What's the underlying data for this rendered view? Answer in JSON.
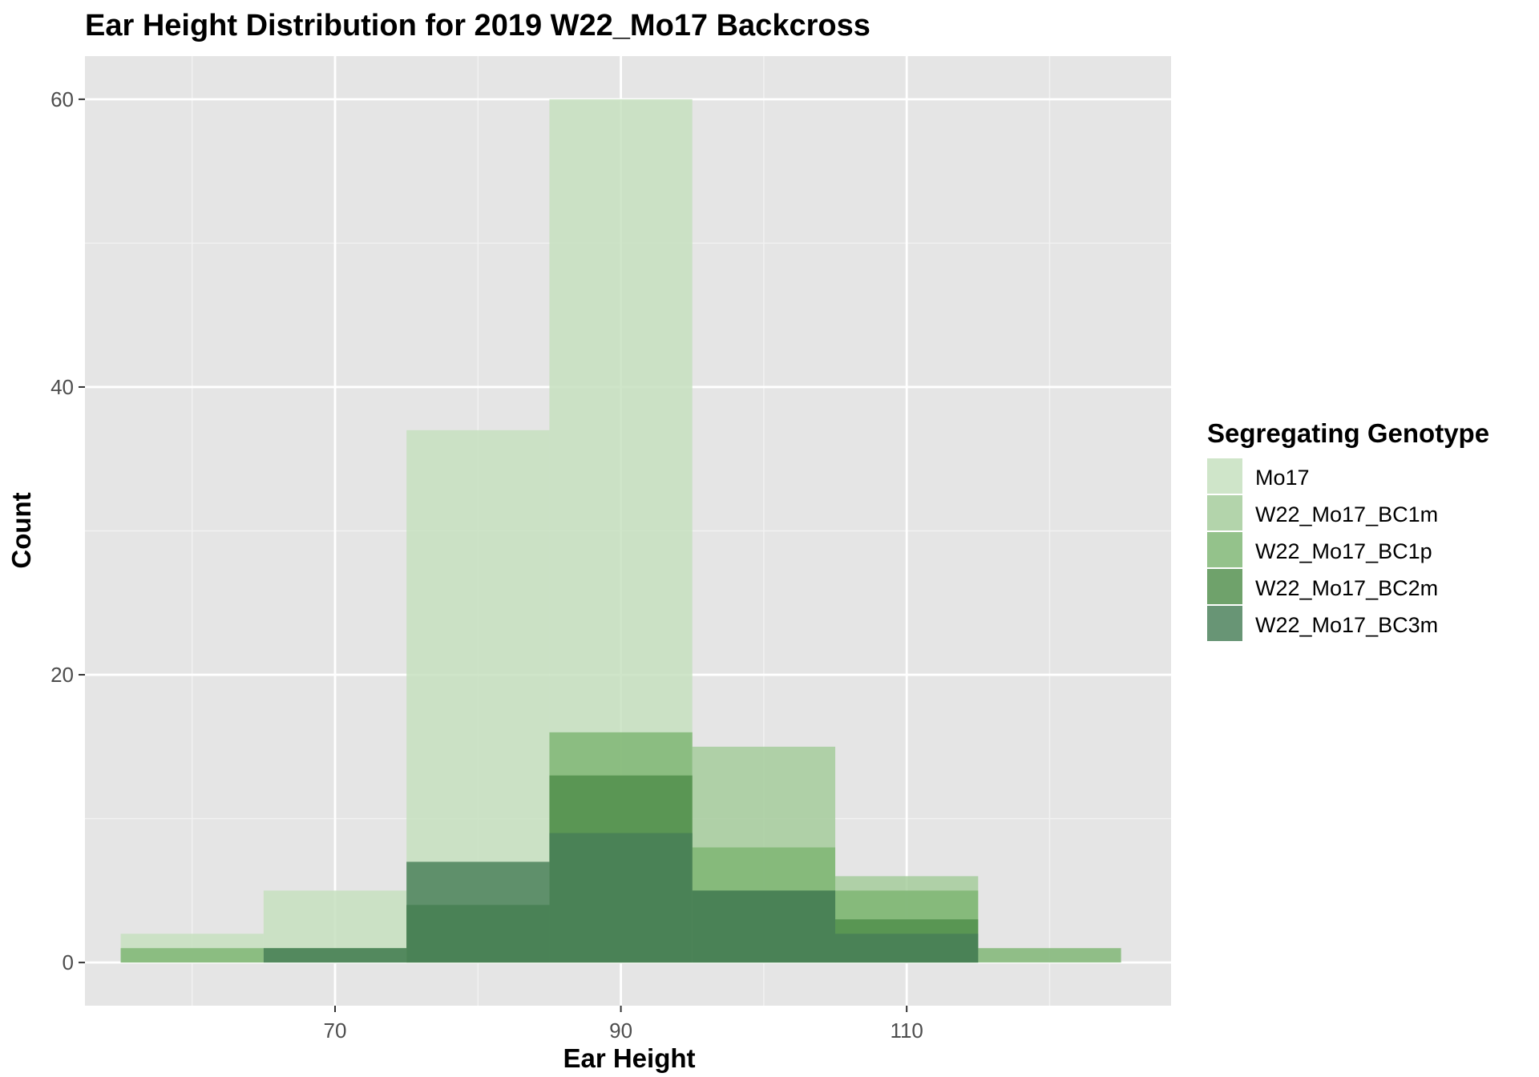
{
  "chart_data": {
    "type": "bar",
    "title": "Ear Height Distribution for 2019 W22_Mo17 Backcross",
    "xlabel": "Ear Height",
    "ylabel": "Count",
    "xlim": [
      52.5,
      128.5
    ],
    "ylim": [
      -3,
      63
    ],
    "x_ticks": [
      70,
      90,
      110
    ],
    "y_ticks": [
      0,
      20,
      40,
      60
    ],
    "x_minor_grid": [
      60,
      80,
      100,
      120
    ],
    "y_minor_grid": [
      10,
      30,
      50
    ],
    "grid": true,
    "bin_width": 10,
    "bin_centers": [
      60,
      70,
      80,
      90,
      100,
      110,
      120
    ],
    "legend": {
      "title": "Segregating Genotype",
      "position": "right"
    },
    "series": [
      {
        "name": "Mo17",
        "color": "#c4dfbd",
        "values": [
          2,
          5,
          37,
          60,
          0,
          0,
          0
        ]
      },
      {
        "name": "W22_Mo17_BC1m",
        "color": "#a2cb99",
        "values": [
          0,
          0,
          0,
          0,
          15,
          6,
          0
        ]
      },
      {
        "name": "W22_Mo17_BC1p",
        "color": "#7db472",
        "values": [
          1,
          1,
          4,
          16,
          8,
          5,
          1
        ]
      },
      {
        "name": "W22_Mo17_BC2m",
        "color": "#4f8e4a",
        "values": [
          0,
          0,
          4,
          13,
          5,
          3,
          0
        ]
      },
      {
        "name": "W22_Mo17_BC3m",
        "color": "#477e57",
        "values": [
          0,
          1,
          7,
          9,
          5,
          2,
          0
        ]
      }
    ]
  }
}
